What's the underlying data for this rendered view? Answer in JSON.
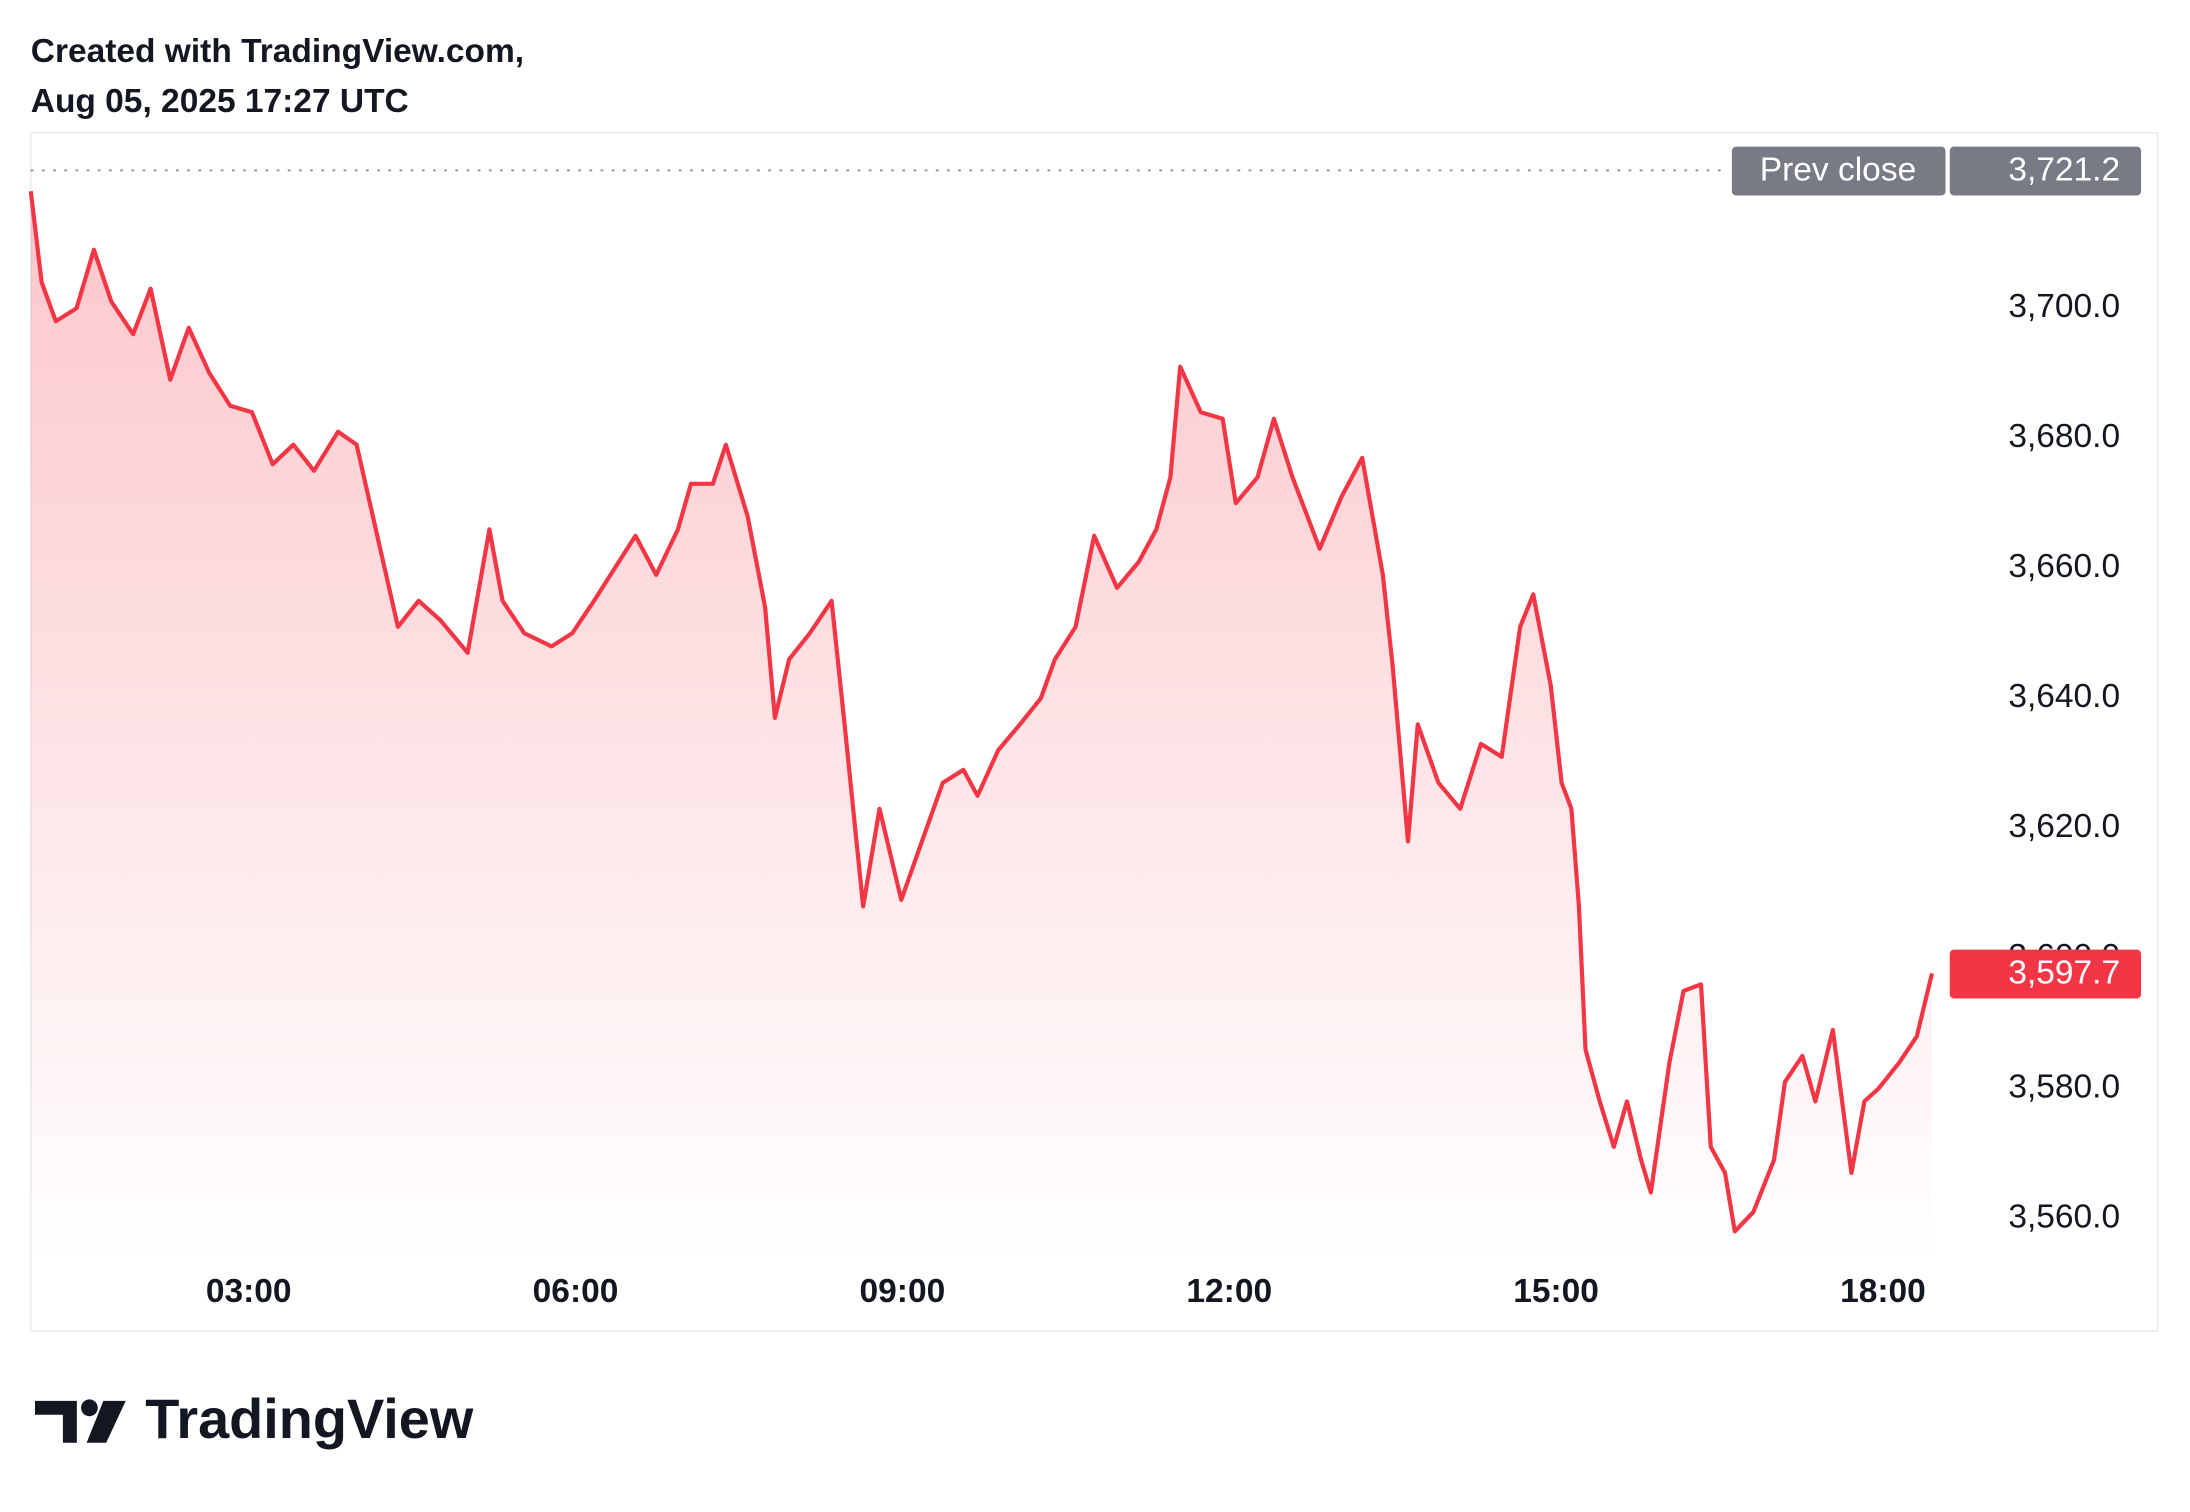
{
  "chart_data": {
    "type": "area",
    "header": "Created with TradingView.com,",
    "subtitle": "Aug 05, 2025 17:27 UTC",
    "brand": "TradingView",
    "color": "#f23645",
    "x": [
      1.0,
      1.1,
      1.23,
      1.42,
      1.58,
      1.74,
      1.94,
      2.1,
      2.28,
      2.45,
      2.64,
      2.83,
      3.03,
      3.22,
      3.41,
      3.6,
      3.82,
      3.99,
      4.18,
      4.37,
      4.56,
      4.76,
      5.01,
      5.21,
      5.33,
      5.53,
      5.78,
      5.97,
      6.17,
      6.36,
      6.55,
      6.74,
      6.94,
      7.06,
      7.26,
      7.38,
      7.58,
      7.74,
      7.83,
      7.96,
      8.15,
      8.35,
      8.47,
      8.56,
      8.64,
      8.79,
      8.99,
      9.18,
      9.37,
      9.56,
      9.69,
      9.88,
      10.08,
      10.27,
      10.4,
      10.59,
      10.76,
      10.97,
      11.17,
      11.33,
      11.46,
      11.55,
      11.74,
      11.94,
      12.06,
      12.26,
      12.41,
      12.58,
      12.83,
      13.03,
      13.22,
      13.41,
      13.5,
      13.64,
      13.73,
      13.92,
      14.12,
      14.31,
      14.5,
      14.67,
      14.79,
      14.95,
      15.05,
      15.14,
      15.21,
      15.27,
      15.4,
      15.53,
      15.65,
      15.78,
      15.87,
      16.04,
      16.17,
      16.33,
      16.42,
      16.55,
      16.64,
      16.81,
      17.0,
      17.1,
      17.26,
      17.38,
      17.54,
      17.71,
      17.83,
      17.96,
      18.15,
      18.31,
      18.45
    ],
    "values": [
      3718,
      3704,
      3698,
      3700,
      3709,
      3701,
      3696,
      3703,
      3689,
      3697,
      3690,
      3685,
      3684,
      3676,
      3679,
      3675,
      3681,
      3679,
      3665,
      3651,
      3655,
      3652,
      3647,
      3666,
      3655,
      3650,
      3648,
      3650,
      3655,
      3660,
      3665,
      3659,
      3666,
      3673,
      3673,
      3679,
      3668,
      3654,
      3637,
      3646,
      3650,
      3655,
      3636,
      3621,
      3608,
      3623,
      3609,
      3618,
      3627,
      3629,
      3625,
      3632,
      3636,
      3640,
      3646,
      3651,
      3665,
      3657,
      3661,
      3666,
      3674,
      3691,
      3684,
      3683,
      3670,
      3674,
      3683,
      3674,
      3663,
      3671,
      3677,
      3659,
      3645,
      3618,
      3636,
      3627,
      3623,
      3633,
      3631,
      3651,
      3656,
      3642,
      3627,
      3623,
      3608,
      3586,
      3578,
      3571,
      3578,
      3569,
      3564,
      3584,
      3595,
      3596,
      3571,
      3567,
      3558,
      3561,
      3569,
      3581,
      3585,
      3578,
      3589,
      3567,
      3578,
      3580,
      3584,
      3588,
      3597.7
    ],
    "xlim": [
      1.0,
      18.6
    ],
    "xticks": [
      {
        "value": 3,
        "label": "03:00"
      },
      {
        "value": 6,
        "label": "06:00"
      },
      {
        "value": 9,
        "label": "09:00"
      },
      {
        "value": 12,
        "label": "12:00"
      },
      {
        "value": 15,
        "label": "15:00"
      },
      {
        "value": 18,
        "label": "18:00"
      }
    ],
    "ylim": [
      3553,
      3727
    ],
    "yticks": [
      {
        "value": 3560,
        "label": "3,560.0"
      },
      {
        "value": 3580,
        "label": "3,580.0"
      },
      {
        "value": 3600,
        "label": "3,600.0"
      },
      {
        "value": 3620,
        "label": "3,620.0"
      },
      {
        "value": 3640,
        "label": "3,640.0"
      },
      {
        "value": 3660,
        "label": "3,660.0"
      },
      {
        "value": 3680,
        "label": "3,680.0"
      },
      {
        "value": 3700,
        "label": "3,700.0"
      }
    ],
    "prev_close_text": "Prev close",
    "prev_close": {
      "value": 3721.2,
      "label": "3,721.2"
    },
    "last_price": {
      "value": 3597.7,
      "label": "3,597.7"
    }
  }
}
